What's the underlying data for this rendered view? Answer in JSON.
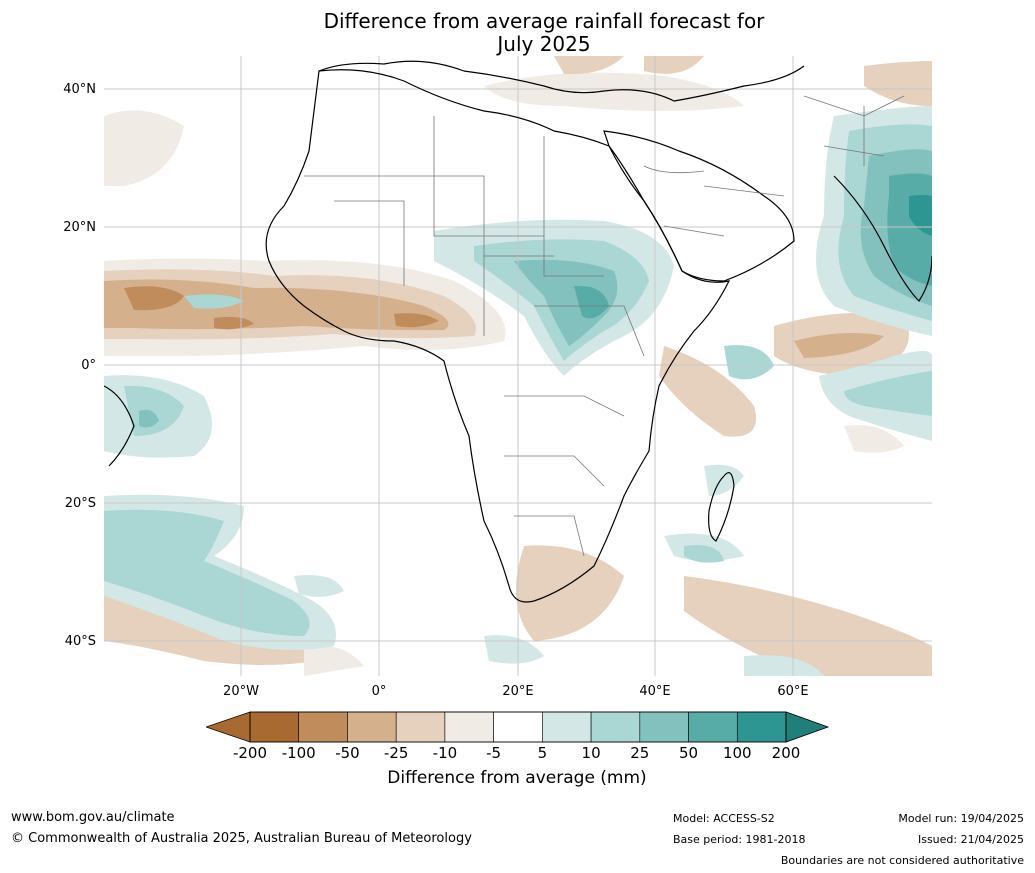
{
  "title_line1": "Difference from average rainfall forecast for",
  "title_line2": "July 2025",
  "lat_labels": [
    "40°N",
    "20°N",
    "0°",
    "20°S",
    "40°S"
  ],
  "lon_labels": [
    "20°W",
    "0°",
    "20°E",
    "40°E",
    "60°E"
  ],
  "colorbar": {
    "ticks": [
      "-200",
      "-100",
      "-50",
      "-25",
      "-10",
      "-5",
      "5",
      "10",
      "25",
      "50",
      "100",
      "200"
    ],
    "colors": [
      "#a86a31",
      "#c18c5c",
      "#d4b08c",
      "#e5d1bd",
      "#f0ebe5",
      "#ffffff",
      "#d3e8e6",
      "#aad6d3",
      "#82c1be",
      "#58aca8",
      "#2e9692"
    ],
    "extend_low_color": "#a86a31",
    "extend_high_color": "#217f7b",
    "label": "Difference from average (mm)"
  },
  "footer": {
    "website": "www.bom.gov.au/climate",
    "copyright": "© Commonwealth of Australia 2025, Australian Bureau of Meteorology",
    "model": "Model: ACCESS-S2",
    "base_period": "Base period: 1981-2018",
    "model_run": "Model run: 19/04/2025",
    "issued": "Issued: 21/04/2025",
    "disclaimer": "Boundaries are not considered authoritative"
  }
}
